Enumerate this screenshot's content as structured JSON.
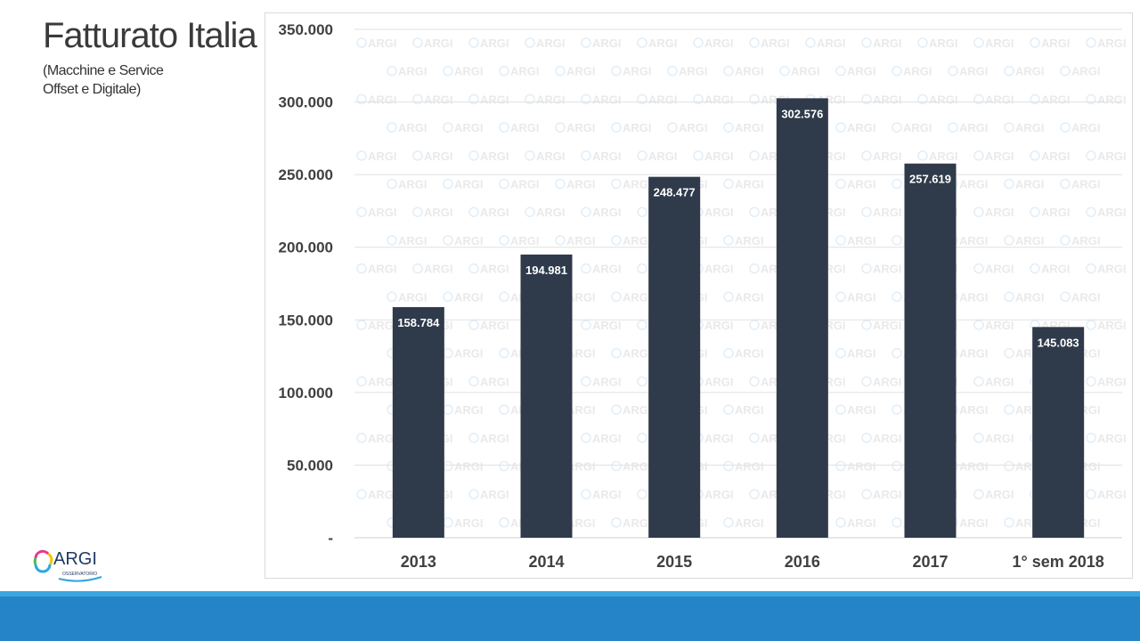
{
  "slide": {
    "title": "Fatturato Italia",
    "subtitle_lines": [
      "(Macchine e Service",
      "Offset e Digitale)"
    ]
  },
  "logo": {
    "text": "ARGI",
    "subtext": "OSSERVATORIO",
    "icon": "argi-ring-logo-icon"
  },
  "watermark": {
    "text": "ARGI"
  },
  "colors": {
    "bar": "#2f3a4b",
    "bar_label": "#ffffff",
    "axis_text": "#404040",
    "gridline": "#e0e0e0",
    "footer": "#2584c8",
    "footer_line": "#3aa6dd"
  },
  "chart_data": {
    "type": "bar",
    "title": "",
    "xlabel": "",
    "ylabel": "",
    "categories": [
      "2013",
      "2014",
      "2015",
      "2016",
      "2017",
      "1° sem 2018"
    ],
    "values": [
      158784,
      194981,
      248477,
      302576,
      257619,
      145083
    ],
    "value_labels": [
      "158.784",
      "194.981",
      "248.477",
      "302.576",
      "257.619",
      "145.083"
    ],
    "ylim": [
      0,
      350000
    ],
    "yticks": [
      0,
      50000,
      100000,
      150000,
      200000,
      250000,
      300000,
      350000
    ],
    "ytick_labels": [
      "-",
      "50.000",
      "100.000",
      "150.000",
      "200.000",
      "250.000",
      "300.000",
      "350.000"
    ],
    "grid": true,
    "legend": "none"
  }
}
